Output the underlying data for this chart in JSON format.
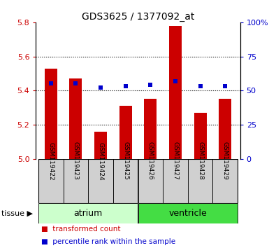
{
  "title": "GDS3625 / 1377092_at",
  "samples": [
    "GSM119422",
    "GSM119423",
    "GSM119424",
    "GSM119425",
    "GSM119426",
    "GSM119427",
    "GSM119428",
    "GSM119429"
  ],
  "red_values": [
    5.53,
    5.47,
    5.16,
    5.31,
    5.35,
    5.78,
    5.27,
    5.35
  ],
  "blue_values": [
    55,
    55,
    52,
    53,
    54,
    57,
    53,
    53
  ],
  "y_min": 5.0,
  "y_max": 5.8,
  "y_ticks": [
    5.0,
    5.2,
    5.4,
    5.6,
    5.8
  ],
  "right_y_ticks": [
    0,
    25,
    50,
    75,
    100
  ],
  "right_y_labels": [
    "0",
    "25",
    "50",
    "75",
    "100%"
  ],
  "bar_color": "#cc0000",
  "marker_color": "#0000cc",
  "atrium_color": "#ccffcc",
  "ventricle_color": "#44dd44",
  "atrium_label": "atrium",
  "ventricle_label": "ventricle",
  "tissue_label": "tissue",
  "legend_red": "transformed count",
  "legend_blue": "percentile rank within the sample",
  "bar_width": 0.5,
  "tick_label_color_left": "#cc0000",
  "tick_label_color_right": "#0000cc",
  "cell_color": "#d0d0d0"
}
